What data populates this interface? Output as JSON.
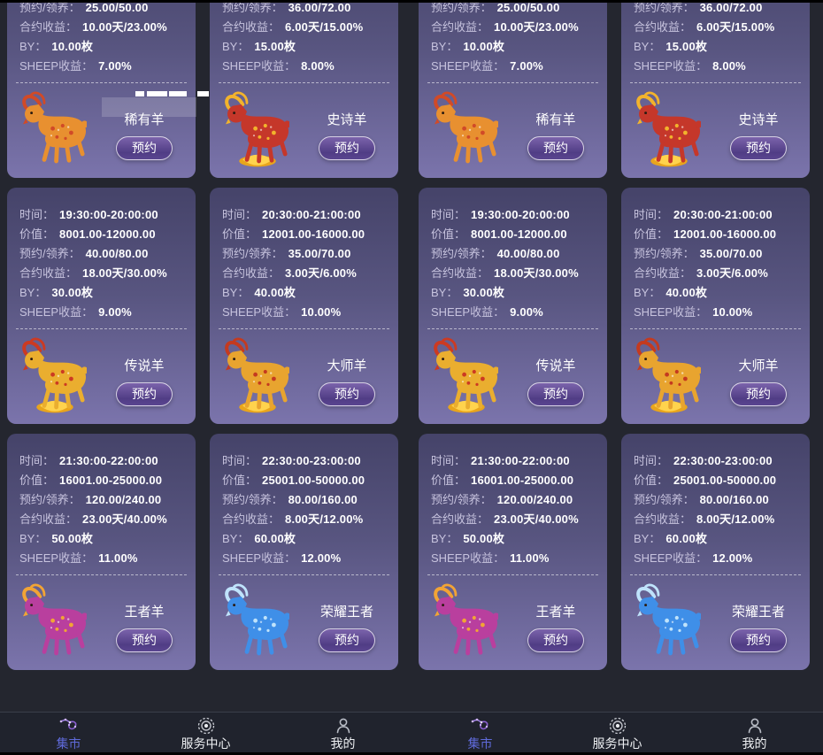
{
  "labels": {
    "time": "时间：",
    "value": "价值：",
    "reserve": "预约/领养：",
    "contract": "合约收益：",
    "by": "BY：",
    "sheep_yield": "SHEEP收益："
  },
  "actions": {
    "reserve": "预约"
  },
  "cards": [
    {
      "type": "rare",
      "name": "稀有羊",
      "time": "",
      "value": "",
      "reserve": "25.00/50.00",
      "contract": "10.00天/23.00%",
      "by": "10.00枚",
      "sheep_yield": "7.00%"
    },
    {
      "type": "epic",
      "name": "史诗羊",
      "time": "",
      "value": "",
      "reserve": "36.00/72.00",
      "contract": "6.00天/15.00%",
      "by": "15.00枚",
      "sheep_yield": "8.00%"
    },
    {
      "type": "legend",
      "name": "传说羊",
      "time": "19:30:00-20:00:00",
      "value": "8001.00-12000.00",
      "reserve": "40.00/80.00",
      "contract": "18.00天/30.00%",
      "by": "30.00枚",
      "sheep_yield": "9.00%"
    },
    {
      "type": "master",
      "name": "大师羊",
      "time": "20:30:00-21:00:00",
      "value": "12001.00-16000.00",
      "reserve": "35.00/70.00",
      "contract": "3.00天/6.00%",
      "by": "40.00枚",
      "sheep_yield": "10.00%"
    },
    {
      "type": "king",
      "name": "王者羊",
      "time": "21:30:00-22:00:00",
      "value": "16001.00-25000.00",
      "reserve": "120.00/240.00",
      "contract": "23.00天/40.00%",
      "by": "50.00枚",
      "sheep_yield": "11.00%"
    },
    {
      "type": "glory",
      "name": "荣耀王者",
      "time": "22:30:00-23:00:00",
      "value": "25001.00-50000.00",
      "reserve": "80.00/160.00",
      "contract": "8.00天/12.00%",
      "by": "60.00枚",
      "sheep_yield": "12.00%"
    }
  ],
  "sheep_types": {
    "rare": {
      "main": "#e89030",
      "accent": "#d14a27",
      "gold_base": false
    },
    "epic": {
      "main": "#c5372a",
      "accent": "#f2b32c",
      "gold_base": true
    },
    "legend": {
      "main": "#eaae2f",
      "accent": "#cc3a22",
      "gold_base": true
    },
    "master": {
      "main": "#e8a42f",
      "accent": "#c43a1f",
      "gold_base": true
    },
    "king": {
      "main": "#b93f9e",
      "accent": "#f2a435",
      "gold_base": false
    },
    "glory": {
      "main": "#3f8fe8",
      "accent": "#bfe3fb",
      "gold_base": false
    }
  },
  "nav": {
    "items": [
      {
        "label": "集市",
        "icon": "market-icon",
        "active": true
      },
      {
        "label": "服务中心",
        "icon": "service-center-icon",
        "active": false
      },
      {
        "label": "我的",
        "icon": "profile-icon",
        "active": false
      }
    ]
  },
  "theme": {
    "card_top": "#454369",
    "card_bottom": "#7b74ac",
    "button_purple": "#503d85",
    "nav_active": "#5f6ad9",
    "page_bg": "#24262f",
    "gold": "#f2b42a"
  }
}
